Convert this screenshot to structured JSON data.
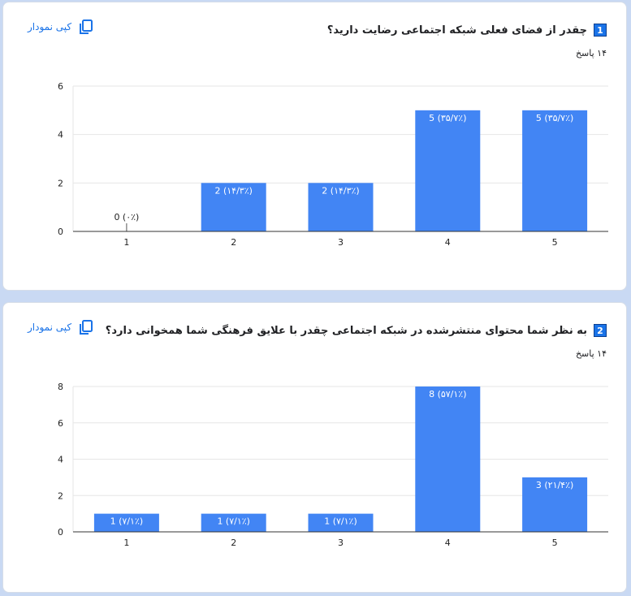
{
  "copy_label": "کپی نمودار",
  "colors": {
    "bar": "#4285f4",
    "accent": "#1a73e8",
    "grid": "#e6e6e6",
    "axis": "#333333"
  },
  "questions": [
    {
      "number": "1",
      "title": "چقدر از فضای فعلی شبکه اجتماعی رضایت دارید؟",
      "responses": "۱۴ پاسخ",
      "icon": "copy-icon"
    },
    {
      "number": "2",
      "title": "به نظر شما محتوای منتشرشده در شبکه اجتماعی چقدر با علایق فرهنگی شما همخوانی دارد؟",
      "responses": "۱۴ پاسخ",
      "icon": "copy-icon"
    }
  ],
  "chart_data": [
    {
      "type": "bar",
      "categories": [
        "1",
        "2",
        "3",
        "4",
        "5"
      ],
      "values": [
        0,
        2,
        2,
        5,
        5
      ],
      "labels": [
        "0 (۰٪)",
        "2 (۱۴/۳٪)",
        "2 (۱۴/۳٪)",
        "5 (۳۵/۷٪)",
        "5 (۳۵/۷٪)"
      ],
      "ylim": [
        0,
        6
      ],
      "yticks": [
        0,
        2,
        4,
        6
      ],
      "grid": true
    },
    {
      "type": "bar",
      "categories": [
        "1",
        "2",
        "3",
        "4",
        "5"
      ],
      "values": [
        1,
        1,
        1,
        8,
        3
      ],
      "labels": [
        "1 (۷/۱٪)",
        "1 (۷/۱٪)",
        "1 (۷/۱٪)",
        "8 (۵۷/۱٪)",
        "3 (۲۱/۴٪)"
      ],
      "ylim": [
        0,
        8
      ],
      "yticks": [
        0,
        2,
        4,
        6,
        8
      ],
      "grid": true
    }
  ]
}
